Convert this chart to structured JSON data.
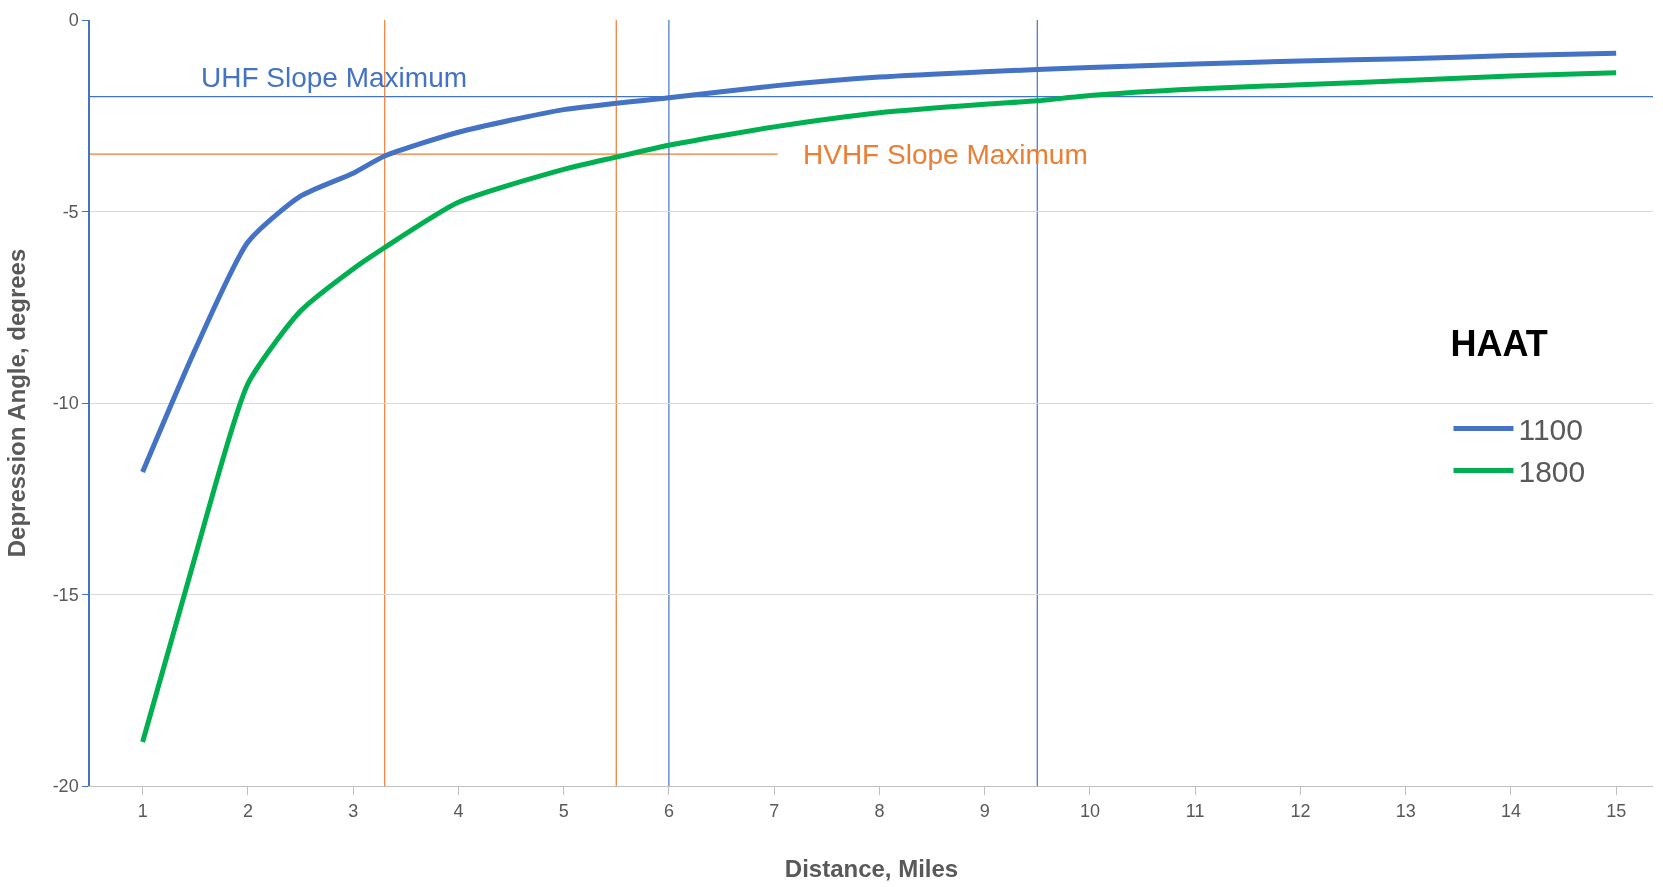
{
  "chart_data": {
    "type": "line",
    "xlabel": "Distance, Miles",
    "ylabel": "Depression Angle, degrees",
    "legend_title": "HAAT",
    "xlim": [
      0.5,
      15.35
    ],
    "xticks": [
      1,
      2,
      3,
      4,
      5,
      6,
      7,
      8,
      9,
      10,
      11,
      12,
      13,
      14,
      15
    ],
    "ylim": [
      -20,
      0
    ],
    "yticks": [
      -20,
      -15,
      -10,
      -5,
      0
    ],
    "grid": "y",
    "legend": "right",
    "series": [
      {
        "name": "1100",
        "color": "#4472c4",
        "x": [
          1,
          1.5,
          2,
          2.5,
          3,
          3.3,
          4,
          5,
          6,
          7,
          8,
          9,
          10,
          11,
          12,
          13,
          14,
          15
        ],
        "values": [
          -11.8,
          -8.6,
          -5.8,
          -4.6,
          -4.0,
          -3.55,
          -2.93,
          -2.34,
          -2.03,
          -1.72,
          -1.49,
          -1.35,
          -1.24,
          -1.15,
          -1.07,
          -1.01,
          -0.93,
          -0.87
        ]
      },
      {
        "name": "1800",
        "color": "#00b050",
        "x": [
          1,
          1.5,
          2,
          2.5,
          3,
          3.3,
          4,
          5,
          5.5,
          6,
          7,
          8,
          9,
          9.5,
          10,
          11,
          12,
          13,
          14,
          15
        ],
        "values": [
          -18.85,
          -14.0,
          -9.5,
          -7.6,
          -6.5,
          -5.94,
          -4.76,
          -3.9,
          -3.58,
          -3.27,
          -2.79,
          -2.42,
          -2.2,
          -2.11,
          -1.97,
          -1.8,
          -1.69,
          -1.58,
          -1.46,
          -1.38
        ]
      }
    ],
    "ref_lines": [
      {
        "axis": "y",
        "value": -2,
        "label": "UHF Slope Maximum",
        "color": "#4472c4"
      },
      {
        "axis": "y",
        "value": -3.5,
        "label": "HVHF Slope Maximum",
        "color": "#ed7d31"
      },
      {
        "axis": "x",
        "value": 3.3,
        "color": "#ed7d31"
      },
      {
        "axis": "x",
        "value": 5.5,
        "color": "#ed7d31"
      },
      {
        "axis": "x",
        "value": 6,
        "color": "#4472c4"
      },
      {
        "axis": "x",
        "value": 9.5,
        "color": "#4472c4"
      }
    ]
  }
}
